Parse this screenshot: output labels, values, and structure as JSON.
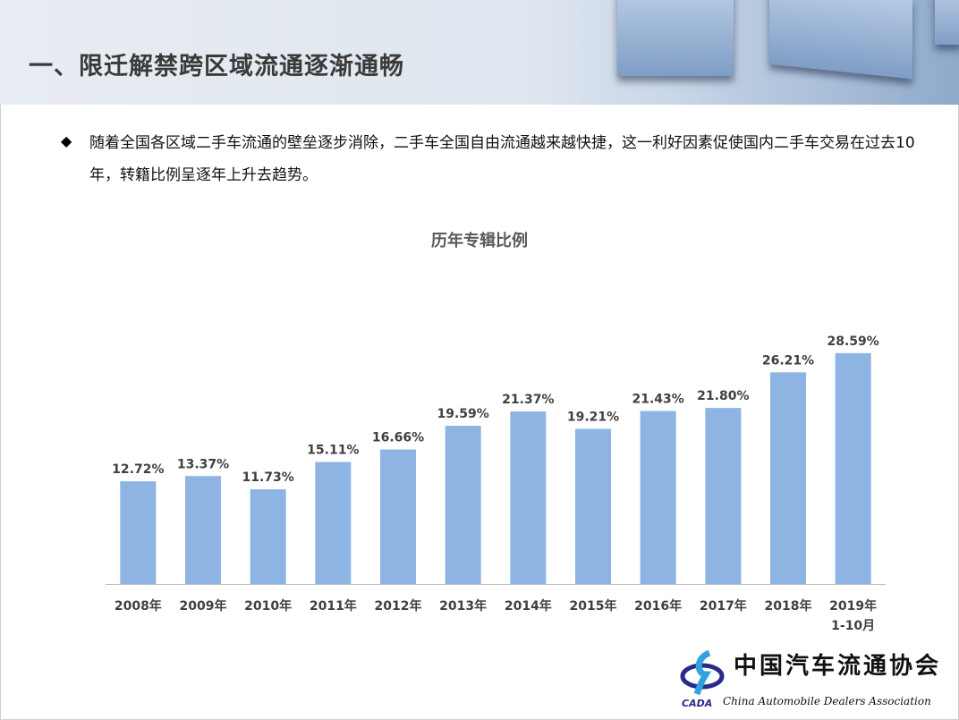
{
  "header": {
    "title": "一、限迁解禁跨区域流通逐渐通畅"
  },
  "body": {
    "bullet": "◆",
    "text": "随着全国各区域二手车流通的壁垒逐步消除，二手车全国自由流通越来越快捷，这一利好因素促使国内二手车交易在过去10年，转籍比例呈逐年上升去趋势。"
  },
  "chart_data": {
    "type": "bar",
    "title": "历年专辑比例",
    "categories": [
      "2008年",
      "2009年",
      "2010年",
      "2011年",
      "2012年",
      "2013年",
      "2014年",
      "2015年",
      "2016年",
      "2017年",
      "2018年",
      "2019年\n1-10月"
    ],
    "values": [
      12.72,
      13.37,
      11.73,
      15.11,
      16.66,
      19.59,
      21.37,
      19.21,
      21.43,
      21.8,
      26.21,
      28.59
    ],
    "labels": [
      "12.72%",
      "13.37%",
      "11.73%",
      "15.11%",
      "16.66%",
      "19.59%",
      "21.37%",
      "19.21%",
      "21.43%",
      "21.80%",
      "26.21%",
      "28.59%"
    ],
    "ylim": [
      0,
      32
    ],
    "grid": false,
    "color": "#8db4e2"
  },
  "logo": {
    "cn": "中国汽车流通协会",
    "en": "China Automobile Dealers Association",
    "abbr": "CADA"
  }
}
